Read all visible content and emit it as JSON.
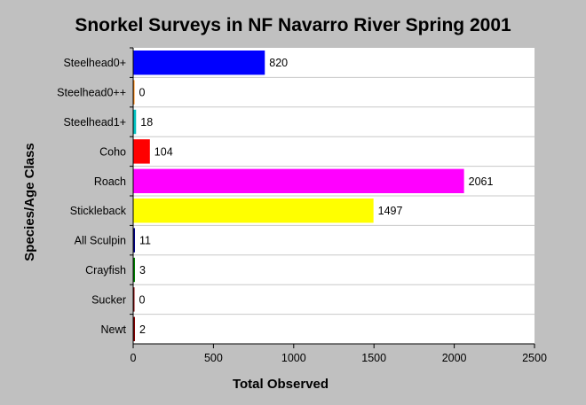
{
  "chart_data": {
    "type": "bar",
    "orientation": "horizontal",
    "title": "Snorkel Surveys in NF Navarro River Spring 2001",
    "xlabel": "Total Observed",
    "ylabel": "Species/Age Class",
    "xlim": [
      0,
      2500
    ],
    "xticks": [
      0,
      500,
      1000,
      1500,
      2000,
      2500
    ],
    "grid": "horizontal lines between categories",
    "categories": [
      "Steelhead0+",
      "Steelhead0++",
      "Steelhead1+",
      "Coho",
      "Roach",
      "Stickleback",
      "All Sculpin",
      "Crayfish",
      "Sucker",
      "Newt"
    ],
    "values": [
      820,
      0,
      18,
      104,
      2061,
      1497,
      11,
      3,
      0,
      2
    ],
    "value_labels": [
      "820",
      "0",
      "18",
      "104",
      "2061",
      "1497",
      "11",
      "3",
      "0",
      "2"
    ],
    "bar_colors": [
      "#0000ff",
      "#ff8000",
      "#00c0c0",
      "#ff0000",
      "#ff00ff",
      "#ffff00",
      "#000080",
      "#008000",
      "#800000",
      "#800000"
    ]
  }
}
